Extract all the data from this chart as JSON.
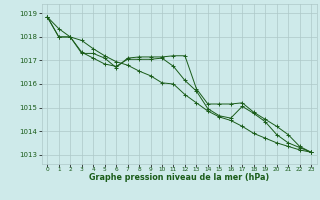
{
  "title": "Graphe pression niveau de la mer (hPa)",
  "background_color": "#ceeaea",
  "grid_color": "#adc8c8",
  "line_color": "#1a5c1a",
  "marker_color": "#1a5c1a",
  "x_ticks": [
    0,
    1,
    2,
    3,
    4,
    5,
    6,
    7,
    8,
    9,
    10,
    11,
    12,
    13,
    14,
    15,
    16,
    17,
    18,
    19,
    20,
    21,
    22,
    23
  ],
  "ylim": [
    1012.6,
    1019.4
  ],
  "y_ticks": [
    1013,
    1014,
    1015,
    1016,
    1017,
    1018,
    1019
  ],
  "line1": [
    1018.85,
    1018.35,
    1018.0,
    1017.85,
    1017.5,
    1017.2,
    1016.95,
    1016.8,
    1016.55,
    1016.35,
    1016.05,
    1016.0,
    1015.55,
    1015.2,
    1014.85,
    1014.6,
    1014.45,
    1014.2,
    1013.9,
    1013.7,
    1013.5,
    1013.35,
    1013.2,
    1013.1
  ],
  "line2": [
    1018.85,
    1018.0,
    1018.0,
    1017.35,
    1017.1,
    1016.85,
    1016.75,
    1017.05,
    1017.05,
    1017.05,
    1017.1,
    1016.75,
    1016.15,
    1015.7,
    1014.95,
    1014.65,
    1014.55,
    1015.05,
    1014.75,
    1014.4,
    1013.85,
    1013.5,
    1013.3,
    1013.1
  ],
  "line3": [
    1018.85,
    1018.0,
    1018.0,
    1017.3,
    1017.3,
    1017.1,
    1016.7,
    1017.1,
    1017.15,
    1017.15,
    1017.15,
    1017.2,
    1017.2,
    1015.8,
    1015.15,
    1015.15,
    1015.15,
    1015.2,
    1014.8,
    1014.5,
    1014.2,
    1013.85,
    1013.35,
    1013.1
  ]
}
